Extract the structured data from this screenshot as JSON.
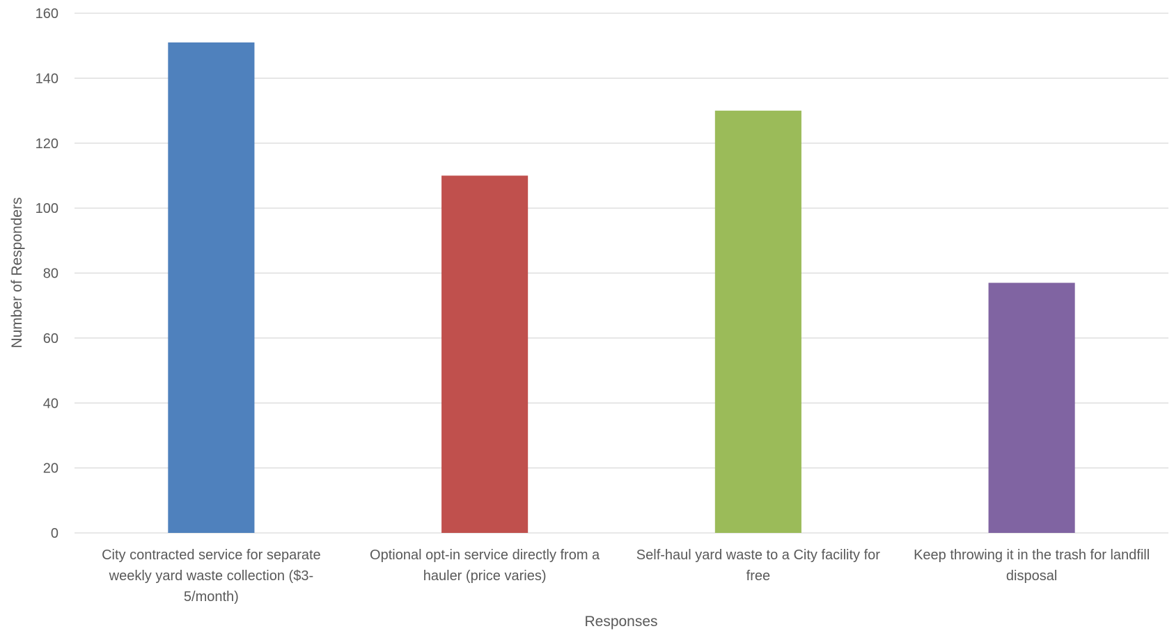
{
  "chart_data": {
    "type": "bar",
    "title": "",
    "xlabel": "Responses",
    "ylabel": "Number of Responders",
    "ylim": [
      0,
      160
    ],
    "yticks": [
      0,
      20,
      40,
      60,
      80,
      100,
      120,
      140,
      160
    ],
    "grid": true,
    "legend": "none",
    "categories": [
      {
        "label": "City contracted service for separate weekly yard waste collection ($3-5/month)",
        "lines": [
          "City contracted service for separate",
          "weekly yard waste collection ($3-",
          "5/month)"
        ]
      },
      {
        "label": "Optional opt-in service directly from a hauler (price varies)",
        "lines": [
          "Optional opt-in service directly from a",
          "hauler (price varies)"
        ]
      },
      {
        "label": "Self-haul yard waste to a City facility for free",
        "lines": [
          "Self-haul yard waste to a City facility for",
          "free"
        ]
      },
      {
        "label": "Keep throwing it in the trash for landfill disposal",
        "lines": [
          "Keep throwing it in the trash for landfill",
          "disposal"
        ]
      }
    ],
    "values": [
      151,
      110,
      130,
      77
    ],
    "colors": [
      "#4f81bd",
      "#c0504d",
      "#9bbb59",
      "#8064a2"
    ]
  }
}
